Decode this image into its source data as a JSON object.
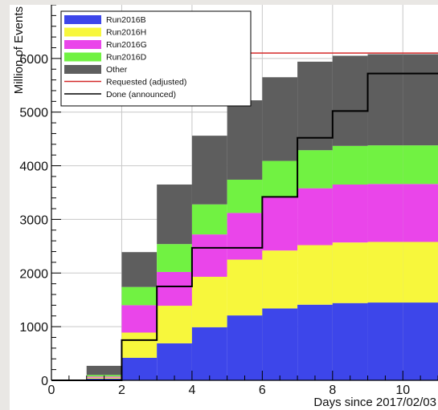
{
  "chart_data": {
    "type": "area",
    "title": "",
    "xlabel": "Days since 2017/02/03",
    "ylabel": "Million of Events",
    "xlim": [
      0,
      11
    ],
    "ylim": [
      0,
      7000
    ],
    "x_ticks": [
      0,
      2,
      4,
      6,
      8,
      10
    ],
    "y_ticks": [
      0,
      1000,
      2000,
      3000,
      4000,
      5000,
      6000
    ],
    "grid": true,
    "legend_position": "top-left",
    "bins": [
      1,
      2,
      3,
      4,
      5,
      6,
      7,
      8,
      9,
      10
    ],
    "bin_width": 1,
    "series": [
      {
        "name": "Run2016B",
        "color": "#3d46ea",
        "values": [
          30,
          420,
          690,
          990,
          1210,
          1340,
          1410,
          1440,
          1450,
          1450
        ]
      },
      {
        "name": "Run2016H",
        "color": "#f7f73c",
        "values": [
          20,
          470,
          700,
          940,
          1040,
          1080,
          1110,
          1130,
          1130,
          1130
        ]
      },
      {
        "name": "Run2016G",
        "color": "#ea45ea",
        "values": [
          20,
          510,
          630,
          790,
          870,
          1000,
          1060,
          1080,
          1080,
          1080
        ]
      },
      {
        "name": "Run2016D",
        "color": "#71f242",
        "values": [
          30,
          340,
          520,
          560,
          620,
          670,
          710,
          720,
          720,
          720
        ]
      },
      {
        "name": "Other",
        "color": "#5e5e5e",
        "values": [
          170,
          650,
          1110,
          1280,
          1480,
          1560,
          1650,
          1680,
          1700,
          1700
        ]
      }
    ],
    "lines": [
      {
        "name": "Requested (adjusted)",
        "color": "#d42a2a",
        "x": [
          3,
          11
        ],
        "y": [
          6100,
          6100
        ]
      },
      {
        "name": "Done (announced)",
        "color": "#000000",
        "steps": [
          [
            0,
            0
          ],
          [
            2,
            0
          ],
          [
            2,
            750
          ],
          [
            3,
            750
          ],
          [
            3,
            1750
          ],
          [
            4,
            1750
          ],
          [
            4,
            2470
          ],
          [
            6,
            2470
          ],
          [
            6,
            3420
          ],
          [
            7,
            3420
          ],
          [
            7,
            4520
          ],
          [
            8,
            4520
          ],
          [
            8,
            5020
          ],
          [
            9,
            5020
          ],
          [
            9,
            5720
          ],
          [
            11,
            5720
          ]
        ]
      }
    ],
    "legend": [
      {
        "label": "Run2016B",
        "kind": "box",
        "color": "#3d46ea"
      },
      {
        "label": "Run2016H",
        "kind": "box",
        "color": "#f7f73c"
      },
      {
        "label": "Run2016G",
        "kind": "box",
        "color": "#ea45ea"
      },
      {
        "label": "Run2016D",
        "kind": "box",
        "color": "#71f242"
      },
      {
        "label": "Other",
        "kind": "box",
        "color": "#5e5e5e"
      },
      {
        "label": "Requested (adjusted)",
        "kind": "line",
        "color": "#d42a2a"
      },
      {
        "label": "Done (announced)",
        "kind": "line",
        "color": "#000000"
      }
    ]
  }
}
